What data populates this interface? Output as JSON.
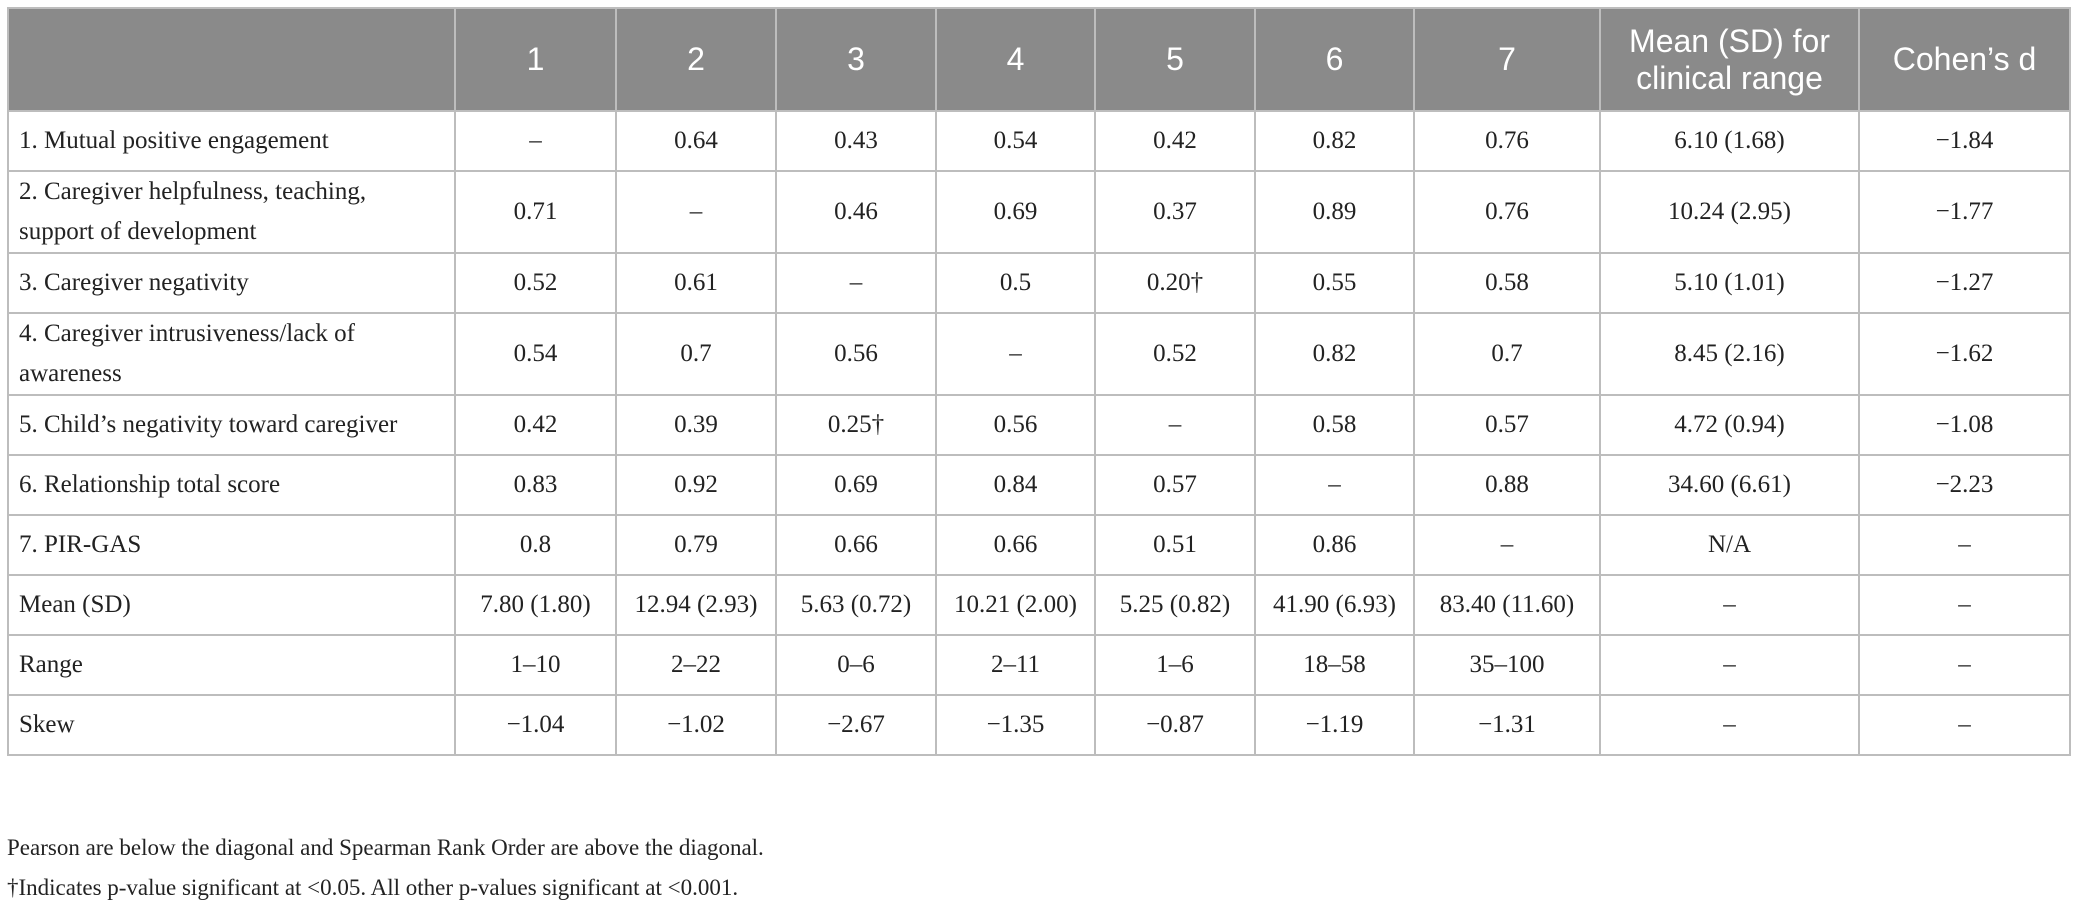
{
  "table": {
    "columns": [
      "1",
      "2",
      "3",
      "4",
      "5",
      "6",
      "7",
      "Mean (SD) for clinical range",
      "Cohen’s d"
    ],
    "rows": [
      {
        "label": "1. Mutual positive engagement",
        "cells": [
          "–",
          "0.64",
          "0.43",
          "0.54",
          "0.42",
          "0.82",
          "0.76",
          "6.10 (1.68)",
          "−1.84"
        ]
      },
      {
        "label": "2. Caregiver helpfulness, teaching, support of development",
        "cells": [
          "0.71",
          "–",
          "0.46",
          "0.69",
          "0.37",
          "0.89",
          "0.76",
          "10.24 (2.95)",
          "−1.77"
        ]
      },
      {
        "label": "3. Caregiver negativity",
        "cells": [
          "0.52",
          "0.61",
          "–",
          "0.5",
          "0.20†",
          "0.55",
          "0.58",
          "5.10 (1.01)",
          "−1.27"
        ]
      },
      {
        "label": "4. Caregiver intrusiveness/lack of awareness",
        "cells": [
          "0.54",
          "0.7",
          "0.56",
          "–",
          "0.52",
          "0.82",
          "0.7",
          "8.45 (2.16)",
          "−1.62"
        ]
      },
      {
        "label": "5. Child’s negativity toward caregiver",
        "cells": [
          "0.42",
          "0.39",
          "0.25†",
          "0.56",
          "–",
          "0.58",
          "0.57",
          "4.72 (0.94)",
          "−1.08"
        ]
      },
      {
        "label": "6. Relationship total score",
        "cells": [
          "0.83",
          "0.92",
          "0.69",
          "0.84",
          "0.57",
          "–",
          "0.88",
          "34.60 (6.61)",
          "−2.23"
        ]
      },
      {
        "label": "7. PIR-GAS",
        "cells": [
          "0.8",
          "0.79",
          "0.66",
          "0.66",
          "0.51",
          "0.86",
          "–",
          "N/A",
          "–"
        ]
      },
      {
        "label": "Mean (SD)",
        "cells": [
          "7.80 (1.80)",
          "12.94 (2.93)",
          "5.63 (0.72)",
          "10.21 (2.00)",
          "5.25 (0.82)",
          "41.90 (6.93)",
          "83.40 (11.60)",
          "–",
          "–"
        ]
      },
      {
        "label": "Range",
        "cells": [
          "1–10",
          "2–22",
          "0–6",
          "2–11",
          "1–6",
          "18–58",
          "35–100",
          "–",
          "–"
        ]
      },
      {
        "label": "Skew",
        "cells": [
          "−1.04",
          "−1.02",
          "−2.67",
          "−1.35",
          "−0.87",
          "−1.19",
          "−1.31",
          "–",
          "–"
        ]
      }
    ]
  },
  "notes": [
    "Pearson are below the diagonal and Spearman Rank Order are above the diagonal.",
    "†Indicates p-value significant at <0.05. All other p-values significant at <0.001."
  ]
}
